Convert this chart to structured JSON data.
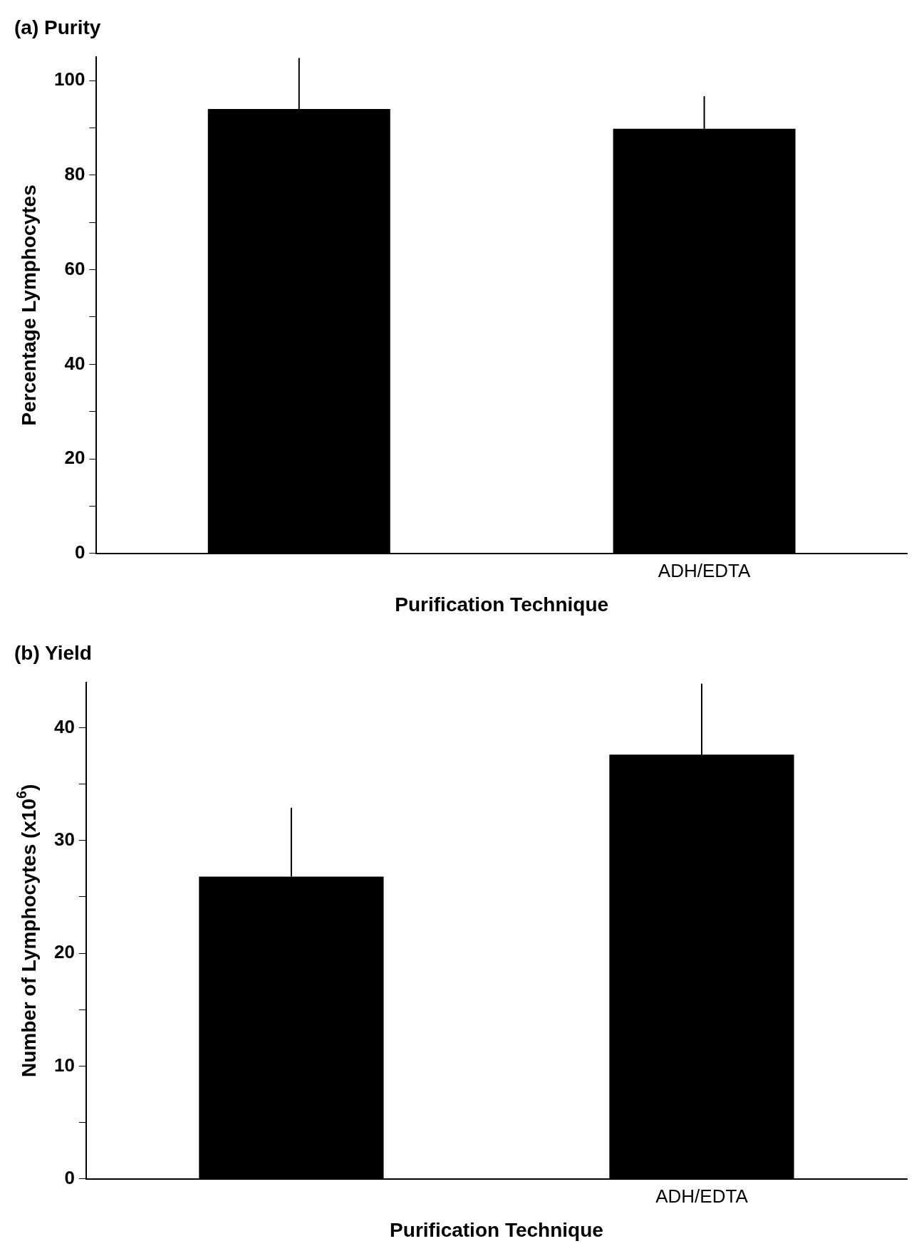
{
  "chart_data": [
    {
      "type": "bar",
      "title": "(a) Purity",
      "xlabel": "Purification Technique",
      "ylabel": "Percentage Lymphocytes",
      "categories": [
        null,
        "ADH/EDTA"
      ],
      "values": [
        94,
        89.8
      ],
      "color": "#000000",
      "errors": [
        [
          94,
          104.8
        ],
        [
          89.8,
          96.7
        ]
      ],
      "ylim": [
        0,
        105
      ],
      "yticks": [
        0,
        {
          "value": 10,
          "label": null
        },
        20,
        {
          "value": 30,
          "label": null
        },
        40,
        {
          "value": 50,
          "label": null
        },
        60,
        {
          "value": 70,
          "label": null
        },
        80,
        {
          "value": 90,
          "label": null
        },
        100
      ],
      "grid": false,
      "legend": false
    },
    {
      "type": "bar",
      "title": "(b) Yield",
      "xlabel": "Purification Technique",
      "ylabel": "Number of Lymphocytes (x10$^{6}$)",
      "categories": [
        null,
        "ADH/EDTA"
      ],
      "values": [
        26.8,
        37.6
      ],
      "color": "#000000",
      "errors": [
        [
          26.8,
          32.9
        ],
        [
          37.6,
          43.9
        ]
      ],
      "ylim": [
        0,
        44
      ],
      "yticks": [
        0,
        {
          "value": 5,
          "label": null
        },
        10,
        {
          "value": 15,
          "label": null
        },
        20,
        {
          "value": 25,
          "label": null
        },
        30,
        {
          "value": 35,
          "label": null
        },
        40
      ],
      "grid": false,
      "legend": false
    }
  ]
}
